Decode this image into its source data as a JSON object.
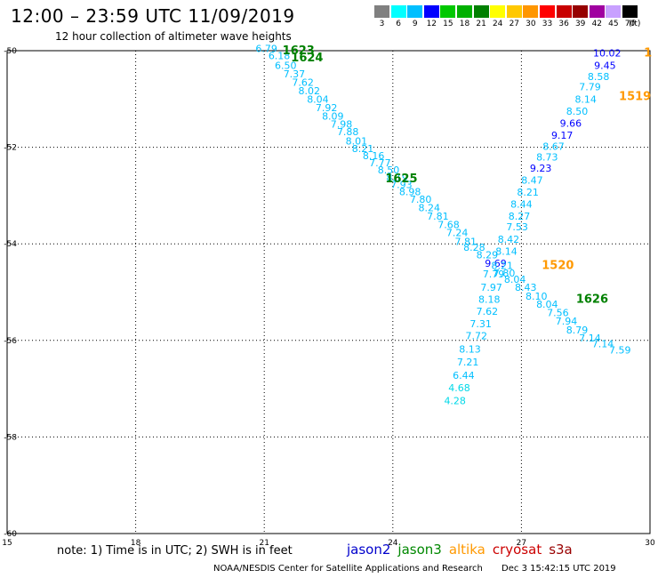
{
  "title": "12:00 – 23:59 UTC 11/09/2019",
  "subtitle": "12 hour collection of altimeter wave heights",
  "color_scale": {
    "unit": "(ft)",
    "bins": [
      {
        "label": "3",
        "color": "#808080"
      },
      {
        "label": "6",
        "color": "#00ffff"
      },
      {
        "label": "9",
        "color": "#00bfff"
      },
      {
        "label": "12",
        "color": "#0000ff"
      },
      {
        "label": "15",
        "color": "#00c800"
      },
      {
        "label": "18",
        "color": "#00b000"
      },
      {
        "label": "21",
        "color": "#008000"
      },
      {
        "label": "24",
        "color": "#ffff00"
      },
      {
        "label": "27",
        "color": "#ffc800"
      },
      {
        "label": "30",
        "color": "#ff9600"
      },
      {
        "label": "33",
        "color": "#ff0000"
      },
      {
        "label": "36",
        "color": "#c80000"
      },
      {
        "label": "39",
        "color": "#960000"
      },
      {
        "label": "42",
        "color": "#a000a0"
      },
      {
        "label": "45",
        "color": "#c8a0ff"
      },
      {
        "label": "70",
        "color": "#000000"
      }
    ]
  },
  "note": "note: 1) Time is in UTC; 2) SWH is in feet",
  "satellites": [
    {
      "name": "jason2",
      "color": "#0000cc"
    },
    {
      "name": "jason3",
      "color": "#008800"
    },
    {
      "name": "altika",
      "color": "#ff9900"
    },
    {
      "name": "cryosat",
      "color": "#cc0000"
    },
    {
      "name": "s3a",
      "color": "#990000"
    }
  ],
  "footer": {
    "credit": "NOAA/NESDIS Center for Satellite Applications and Research",
    "timestamp": "Dec  3 15:42:15 UTC 2019"
  },
  "map": {
    "lon_range": [
      15,
      30
    ],
    "lat_range": [
      -60,
      -50
    ],
    "lon_ticks": [
      "15",
      "18",
      "21",
      "24",
      "27",
      "30"
    ],
    "lat_ticks": [
      "-50",
      "-52",
      "-54",
      "-56",
      "-58",
      "-60"
    ],
    "grid": "dotted"
  },
  "track_labels": [
    {
      "text": "1623",
      "lon": 21.8,
      "lat": -50.0,
      "color": "#008000"
    },
    {
      "text": "1624",
      "lon": 22.0,
      "lat": -50.15,
      "color": "#008000"
    },
    {
      "text": "1625",
      "lon": 24.2,
      "lat": -52.65,
      "color": "#008000"
    },
    {
      "text": "1626",
      "lon": 28.65,
      "lat": -55.15,
      "color": "#008000"
    },
    {
      "text": "1519",
      "lon": 29.65,
      "lat": -50.95,
      "color": "#ff9900"
    },
    {
      "text": "1",
      "lon": 29.95,
      "lat": -50.05,
      "color": "#ff9900"
    },
    {
      "text": "1520",
      "lon": 27.85,
      "lat": -54.45,
      "color": "#ff9900"
    }
  ],
  "swh_points": [
    {
      "text": "6.79",
      "lon": 21.05,
      "lat": -49.95,
      "color": "#00bfff"
    },
    {
      "text": "6.18",
      "lon": 21.35,
      "lat": -50.1,
      "color": "#00bfff"
    },
    {
      "text": "6.50",
      "lon": 21.5,
      "lat": -50.3,
      "color": "#00bfff"
    },
    {
      "text": "7.37",
      "lon": 21.7,
      "lat": -50.48,
      "color": "#00bfff"
    },
    {
      "text": "7.62",
      "lon": 21.9,
      "lat": -50.65,
      "color": "#00bfff"
    },
    {
      "text": "8.02",
      "lon": 22.05,
      "lat": -50.83,
      "color": "#00bfff"
    },
    {
      "text": "8.04",
      "lon": 22.25,
      "lat": -51.0,
      "color": "#00bfff"
    },
    {
      "text": "7.92",
      "lon": 22.45,
      "lat": -51.18,
      "color": "#00bfff"
    },
    {
      "text": "8.09",
      "lon": 22.6,
      "lat": -51.35,
      "color": "#00bfff"
    },
    {
      "text": "7.98",
      "lon": 22.8,
      "lat": -51.52,
      "color": "#00bfff"
    },
    {
      "text": "7.88",
      "lon": 22.95,
      "lat": -51.68,
      "color": "#00bfff"
    },
    {
      "text": "8.01",
      "lon": 23.15,
      "lat": -51.87,
      "color": "#00bfff"
    },
    {
      "text": "8.21",
      "lon": 23.3,
      "lat": -52.03,
      "color": "#00bfff"
    },
    {
      "text": "8.16",
      "lon": 23.55,
      "lat": -52.17,
      "color": "#00bfff"
    },
    {
      "text": "7.77",
      "lon": 23.7,
      "lat": -52.32,
      "color": "#00bfff"
    },
    {
      "text": "8.50",
      "lon": 23.9,
      "lat": -52.47,
      "color": "#00bfff"
    },
    {
      "text": "8.19",
      "lon": 24.1,
      "lat": -52.62,
      "color": "#00bfff"
    },
    {
      "text": "7.93",
      "lon": 24.2,
      "lat": -52.77,
      "color": "#00bfff"
    },
    {
      "text": "8.98",
      "lon": 24.4,
      "lat": -52.92,
      "color": "#00bfff"
    },
    {
      "text": "7.80",
      "lon": 24.65,
      "lat": -53.08,
      "color": "#00bfff"
    },
    {
      "text": "8.24",
      "lon": 24.85,
      "lat": -53.25,
      "color": "#00bfff"
    },
    {
      "text": "7.81",
      "lon": 25.05,
      "lat": -53.43,
      "color": "#00bfff"
    },
    {
      "text": "7.68",
      "lon": 25.3,
      "lat": -53.6,
      "color": "#00bfff"
    },
    {
      "text": "7.24",
      "lon": 25.5,
      "lat": -53.77,
      "color": "#00bfff"
    },
    {
      "text": "7.81",
      "lon": 25.7,
      "lat": -53.95,
      "color": "#00bfff"
    },
    {
      "text": "8.28",
      "lon": 25.9,
      "lat": -54.07,
      "color": "#00bfff"
    },
    {
      "text": "8.29",
      "lon": 26.2,
      "lat": -54.23,
      "color": "#00bfff"
    },
    {
      "text": "9.69",
      "lon": 26.4,
      "lat": -54.4,
      "color": "#0000ff"
    },
    {
      "text": "8.21",
      "lon": 26.55,
      "lat": -54.45,
      "color": "#00bfff"
    },
    {
      "text": "7.79",
      "lon": 26.35,
      "lat": -54.62,
      "color": "#00bfff"
    },
    {
      "text": "7.80",
      "lon": 26.6,
      "lat": -54.6,
      "color": "#00bfff"
    },
    {
      "text": "8.04",
      "lon": 26.85,
      "lat": -54.73,
      "color": "#00bfff"
    },
    {
      "text": "8.43",
      "lon": 27.1,
      "lat": -54.9,
      "color": "#00bfff"
    },
    {
      "text": "8.10",
      "lon": 27.35,
      "lat": -55.08,
      "color": "#00bfff"
    },
    {
      "text": "8.04",
      "lon": 27.6,
      "lat": -55.25,
      "color": "#00bfff"
    },
    {
      "text": "7.56",
      "lon": 27.85,
      "lat": -55.42,
      "color": "#00bfff"
    },
    {
      "text": "7.94",
      "lon": 28.05,
      "lat": -55.6,
      "color": "#00bfff"
    },
    {
      "text": "8.79",
      "lon": 28.3,
      "lat": -55.78,
      "color": "#00bfff"
    },
    {
      "text": "7.14",
      "lon": 28.6,
      "lat": -55.95,
      "color": "#00bfff"
    },
    {
      "text": "7.14",
      "lon": 28.9,
      "lat": -56.07,
      "color": "#00bfff"
    },
    {
      "text": "7.59",
      "lon": 29.3,
      "lat": -56.2,
      "color": "#00bfff"
    },
    {
      "text": "10.02",
      "lon": 29.0,
      "lat": -50.05,
      "color": "#0000ff"
    },
    {
      "text": "9.45",
      "lon": 28.95,
      "lat": -50.3,
      "color": "#0000ff"
    },
    {
      "text": "8.58",
      "lon": 28.8,
      "lat": -50.53,
      "color": "#00bfff"
    },
    {
      "text": "7.79",
      "lon": 28.6,
      "lat": -50.75,
      "color": "#00bfff"
    },
    {
      "text": "8.14",
      "lon": 28.5,
      "lat": -51.0,
      "color": "#00bfff"
    },
    {
      "text": "8.50",
      "lon": 28.3,
      "lat": -51.25,
      "color": "#00bfff"
    },
    {
      "text": "9.66",
      "lon": 28.15,
      "lat": -51.5,
      "color": "#0000ff"
    },
    {
      "text": "9.17",
      "lon": 27.95,
      "lat": -51.75,
      "color": "#0000ff"
    },
    {
      "text": "8.67",
      "lon": 27.75,
      "lat": -51.98,
      "color": "#00bfff"
    },
    {
      "text": "8.73",
      "lon": 27.6,
      "lat": -52.2,
      "color": "#00bfff"
    },
    {
      "text": "9.23",
      "lon": 27.45,
      "lat": -52.43,
      "color": "#0000ff"
    },
    {
      "text": "8.47",
      "lon": 27.25,
      "lat": -52.68,
      "color": "#00bfff"
    },
    {
      "text": "8.21",
      "lon": 27.15,
      "lat": -52.93,
      "color": "#00bfff"
    },
    {
      "text": "8.44",
      "lon": 27.0,
      "lat": -53.18,
      "color": "#00bfff"
    },
    {
      "text": "8.27",
      "lon": 26.95,
      "lat": -53.43,
      "color": "#00bfff"
    },
    {
      "text": "7.53",
      "lon": 26.9,
      "lat": -53.65,
      "color": "#00bfff"
    },
    {
      "text": "8.42",
      "lon": 26.7,
      "lat": -53.9,
      "color": "#00bfff"
    },
    {
      "text": "8.14",
      "lon": 26.65,
      "lat": -54.15,
      "color": "#00bfff"
    },
    {
      "text": "7.97",
      "lon": 26.3,
      "lat": -54.9,
      "color": "#00bfff"
    },
    {
      "text": "8.18",
      "lon": 26.25,
      "lat": -55.15,
      "color": "#00bfff"
    },
    {
      "text": "7.62",
      "lon": 26.2,
      "lat": -55.4,
      "color": "#00bfff"
    },
    {
      "text": "7.31",
      "lon": 26.05,
      "lat": -55.65,
      "color": "#00bfff"
    },
    {
      "text": "7.72",
      "lon": 25.95,
      "lat": -55.9,
      "color": "#00bfff"
    },
    {
      "text": "8.13",
      "lon": 25.8,
      "lat": -56.18,
      "color": "#00bfff"
    },
    {
      "text": "7.21",
      "lon": 25.75,
      "lat": -56.45,
      "color": "#00bfff"
    },
    {
      "text": "6.44",
      "lon": 25.65,
      "lat": -56.72,
      "color": "#00bfff"
    },
    {
      "text": "4.68",
      "lon": 25.55,
      "lat": -56.98,
      "color": "#00d8e8"
    },
    {
      "text": "4.28",
      "lon": 25.45,
      "lat": -57.25,
      "color": "#00d8e8"
    }
  ]
}
